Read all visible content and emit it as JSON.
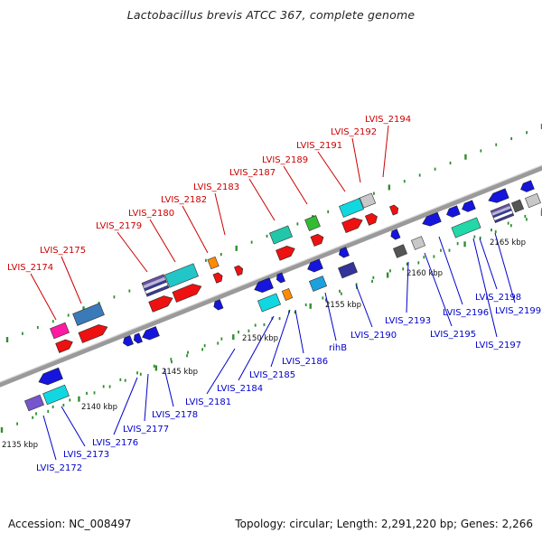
{
  "title": "Lactobacillus brevis ATCC 367, complete genome",
  "footer": {
    "accession": "Accession: NC_008497",
    "summary": "Topology: circular; Length: 2,291,220 bp; Genes: 2,266"
  },
  "colors": {
    "forward_label": "#cc0000",
    "reverse_label": "#0000cc",
    "backbone": "#808080",
    "tick": "#2f8f2f",
    "scale_text": "#111111"
  },
  "scale_labels": [
    "2135 kbp",
    "2140 kbp",
    "2145 kbp",
    "2150 kbp",
    "2155 kbp",
    "2160 kbp",
    "2165 kbp"
  ],
  "forward_labels": [
    "LVIS_2174",
    "LVIS_2175",
    "LVIS_2179",
    "LVIS_2180",
    "LVIS_2182",
    "LVIS_2183",
    "LVIS_2187",
    "LVIS_2189",
    "LVIS_2191",
    "LVIS_2192",
    "LVIS_2194"
  ],
  "reverse_labels": [
    "LVIS_2172",
    "LVIS_2173",
    "LVIS_2176",
    "LVIS_2177",
    "LVIS_2178",
    "LVIS_2181",
    "LVIS_2184",
    "LVIS_2185",
    "LVIS_2186",
    "rihB",
    "LVIS_2190",
    "LVIS_2193",
    "LVIS_2195",
    "LVIS_2196",
    "LVIS_2197",
    "LVIS_2198",
    "LVIS_2199"
  ]
}
